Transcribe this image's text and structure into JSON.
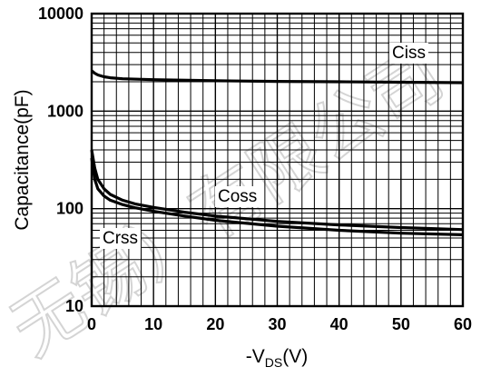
{
  "chart_data": {
    "type": "line",
    "xlabel": "-V",
    "xlabel_sub": "DS",
    "xlabel_unit": "(V)",
    "ylabel": "Capacitance(pF)",
    "xlim": [
      0,
      60
    ],
    "ylim": [
      10,
      10000
    ],
    "y_scale": "log",
    "grid": true,
    "x_ticks": [
      0,
      10,
      20,
      30,
      40,
      50,
      60
    ],
    "y_ticks": [
      10,
      100,
      1000,
      10000
    ],
    "x_tick_labels": [
      "0",
      "10",
      "20",
      "30",
      "40",
      "50",
      "60"
    ],
    "y_tick_labels": [
      "10",
      "100",
      "1000",
      "10000"
    ],
    "series": [
      {
        "name": "Ciss",
        "x": [
          0,
          0.5,
          1,
          2,
          3,
          5,
          10,
          20,
          30,
          40,
          50,
          60
        ],
        "y": [
          2600,
          2450,
          2350,
          2250,
          2200,
          2150,
          2100,
          2050,
          2020,
          2000,
          1980,
          1960
        ]
      },
      {
        "name": "Coss",
        "x": [
          0,
          0.5,
          1,
          2,
          3,
          5,
          7,
          10,
          15,
          20,
          30,
          40,
          50,
          60
        ],
        "y": [
          400,
          260,
          200,
          160,
          140,
          122,
          112,
          103,
          92,
          84,
          74,
          68,
          64,
          61
        ]
      },
      {
        "name": "Crss",
        "x": [
          0,
          0.5,
          1,
          2,
          3,
          5,
          7,
          10,
          15,
          20,
          30,
          40,
          50,
          60
        ],
        "y": [
          330,
          200,
          160,
          135,
          122,
          110,
          102,
          94,
          84,
          76,
          66,
          60,
          56,
          54
        ]
      }
    ]
  },
  "watermark": "无锡）有限公司",
  "colors": {
    "line": "#000000",
    "grid": "#000000",
    "background": "#ffffff",
    "watermark": "#d4d4d4"
  }
}
